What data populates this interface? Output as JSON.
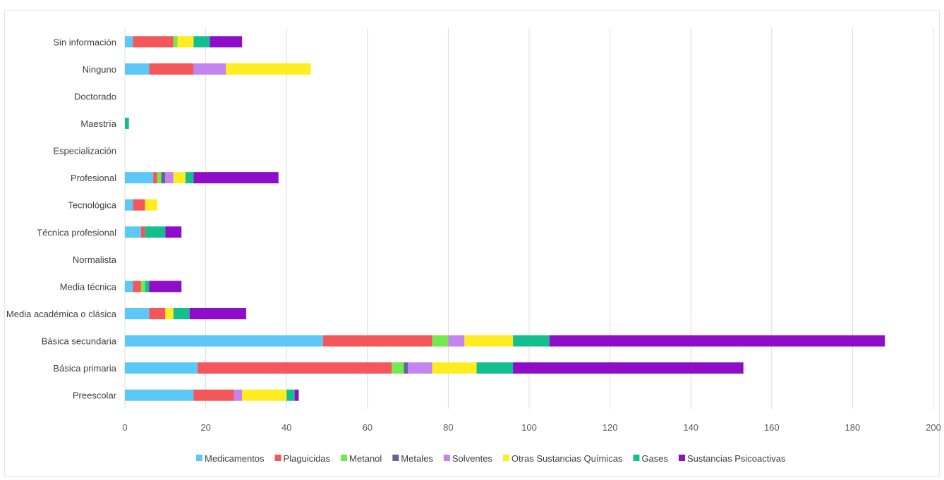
{
  "chart_data": {
    "type": "bar",
    "orientation": "horizontal",
    "stacked": true,
    "categories": [
      "Preescolar",
      "Básica primaria",
      "Básica secundaria",
      "Media académica o clásica",
      "Media técnica",
      "Normalista",
      "Técnica profesional",
      "Tecnológica",
      "Profesional",
      "Especialización",
      "Maestría",
      "Doctorado",
      "Ninguno",
      "Sin información"
    ],
    "series": [
      {
        "name": "Medicamentos",
        "color": "#5bc8f7",
        "values": [
          17,
          18,
          49,
          6,
          2,
          0,
          4,
          2,
          7,
          0,
          0,
          0,
          6,
          2
        ]
      },
      {
        "name": "Plaguicidas",
        "color": "#f4575a",
        "values": [
          10,
          48,
          27,
          4,
          2,
          0,
          1,
          3,
          1,
          0,
          0,
          0,
          11,
          10
        ]
      },
      {
        "name": "Metanol",
        "color": "#74e84c",
        "values": [
          0,
          3,
          4,
          0,
          1,
          0,
          0,
          0,
          1,
          0,
          0,
          0,
          0,
          1
        ]
      },
      {
        "name": "Metales",
        "color": "#6a5f9e",
        "values": [
          0,
          1,
          0,
          0,
          0,
          0,
          0,
          0,
          1,
          0,
          0,
          0,
          0,
          0
        ]
      },
      {
        "name": "Solventes",
        "color": "#c184f0",
        "values": [
          2,
          6,
          4,
          0,
          0,
          0,
          0,
          0,
          2,
          0,
          0,
          0,
          8,
          0
        ]
      },
      {
        "name": "Otras Sustancias Químicas",
        "color": "#ffed1f",
        "values": [
          11,
          11,
          12,
          2,
          0,
          0,
          0,
          3,
          3,
          0,
          0,
          0,
          21,
          4
        ]
      },
      {
        "name": "Gases",
        "color": "#14bf8f",
        "values": [
          2,
          9,
          9,
          4,
          1,
          0,
          5,
          0,
          2,
          0,
          1,
          0,
          0,
          4
        ]
      },
      {
        "name": "Sustancias Psicoactivas",
        "color": "#8f0cc9",
        "values": [
          1,
          57,
          83,
          14,
          8,
          0,
          4,
          0,
          21,
          0,
          0,
          0,
          0,
          8
        ]
      }
    ],
    "xlim": [
      0,
      200
    ],
    "xticks": [
      0,
      20,
      40,
      60,
      80,
      100,
      120,
      140,
      160,
      180,
      200
    ],
    "title": "",
    "xlabel": "",
    "ylabel": "",
    "grid": "vertical",
    "legend": "bottom"
  }
}
